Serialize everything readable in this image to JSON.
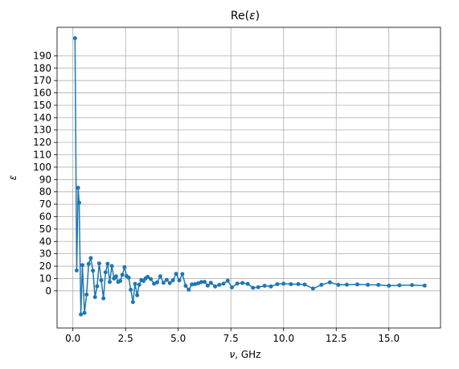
{
  "chart_data": {
    "type": "line",
    "title": "Re(ε)",
    "title_main": "Re(",
    "title_symbol": "ε",
    "title_close": ")",
    "xlabel": "ν, GHz",
    "xlabel_symbol": "ν",
    "xlabel_rest": ", GHz",
    "ylabel": "ε",
    "xlim": [
      -0.75,
      17.45
    ],
    "ylim": [
      -30,
      213
    ],
    "grid": true,
    "xticks": [
      0.0,
      2.5,
      5.0,
      7.5,
      10.0,
      12.5,
      15.0
    ],
    "xtick_labels": [
      "0.0",
      "2.5",
      "5.0",
      "7.5",
      "10.0",
      "12.5",
      "15.0"
    ],
    "yticks": [
      0,
      10,
      20,
      30,
      40,
      50,
      60,
      70,
      80,
      90,
      100,
      110,
      120,
      130,
      140,
      150,
      160,
      170,
      180,
      190
    ],
    "ytick_labels": [
      "0",
      "10",
      "20",
      "30",
      "40",
      "50",
      "60",
      "70",
      "80",
      "90",
      "100",
      "110",
      "120",
      "130",
      "140",
      "150",
      "160",
      "170",
      "180",
      "190"
    ],
    "color": "#1f77b4",
    "marker": "circle",
    "x": [
      0.1,
      0.18,
      0.25,
      0.3,
      0.38,
      0.45,
      0.55,
      0.65,
      0.75,
      0.85,
      0.95,
      1.05,
      1.15,
      1.25,
      1.35,
      1.45,
      1.55,
      1.65,
      1.75,
      1.85,
      1.95,
      2.05,
      2.15,
      2.25,
      2.35,
      2.45,
      2.55,
      2.65,
      2.75,
      2.85,
      2.95,
      3.05,
      3.15,
      3.25,
      3.35,
      3.45,
      3.55,
      3.7,
      3.85,
      4.0,
      4.15,
      4.3,
      4.45,
      4.6,
      4.75,
      4.9,
      5.05,
      5.2,
      5.35,
      5.5,
      5.65,
      5.8,
      5.95,
      6.1,
      6.25,
      6.4,
      6.55,
      6.75,
      6.95,
      7.15,
      7.35,
      7.55,
      7.8,
      8.05,
      8.3,
      8.55,
      8.8,
      9.1,
      9.4,
      9.7,
      10.0,
      10.35,
      10.7,
      11.0,
      11.4,
      11.8,
      12.2,
      12.6,
      13.0,
      13.5,
      14.0,
      14.5,
      15.0,
      15.5,
      16.1,
      16.7
    ],
    "y": [
      204.2,
      16.5,
      83.3,
      71.2,
      -19.0,
      20.8,
      -17.8,
      -3.0,
      21.8,
      26.5,
      16.3,
      -5.0,
      3.7,
      22.2,
      8.5,
      -6.0,
      15.0,
      21.9,
      7.2,
      20.1,
      10.0,
      11.7,
      7.2,
      8.1,
      13.0,
      19.1,
      12.0,
      10.7,
      0.9,
      -9.0,
      5.7,
      -3.5,
      5.0,
      8.8,
      8.0,
      10.1,
      11.3,
      9.6,
      5.8,
      6.9,
      11.7,
      6.6,
      8.9,
      6.3,
      8.5,
      13.8,
      8.5,
      13.6,
      4.1,
      0.9,
      5.2,
      5.5,
      6.1,
      7.1,
      7.3,
      4.3,
      6.5,
      3.6,
      4.9,
      5.8,
      8.3,
      2.8,
      5.9,
      6.4,
      5.7,
      2.5,
      3.0,
      4.1,
      3.6,
      5.4,
      5.8,
      5.4,
      5.5,
      5.1,
      1.9,
      4.9,
      6.9,
      4.9,
      5.0,
      5.2,
      4.9,
      4.8,
      4.2,
      4.5,
      4.7,
      4.3
    ]
  }
}
